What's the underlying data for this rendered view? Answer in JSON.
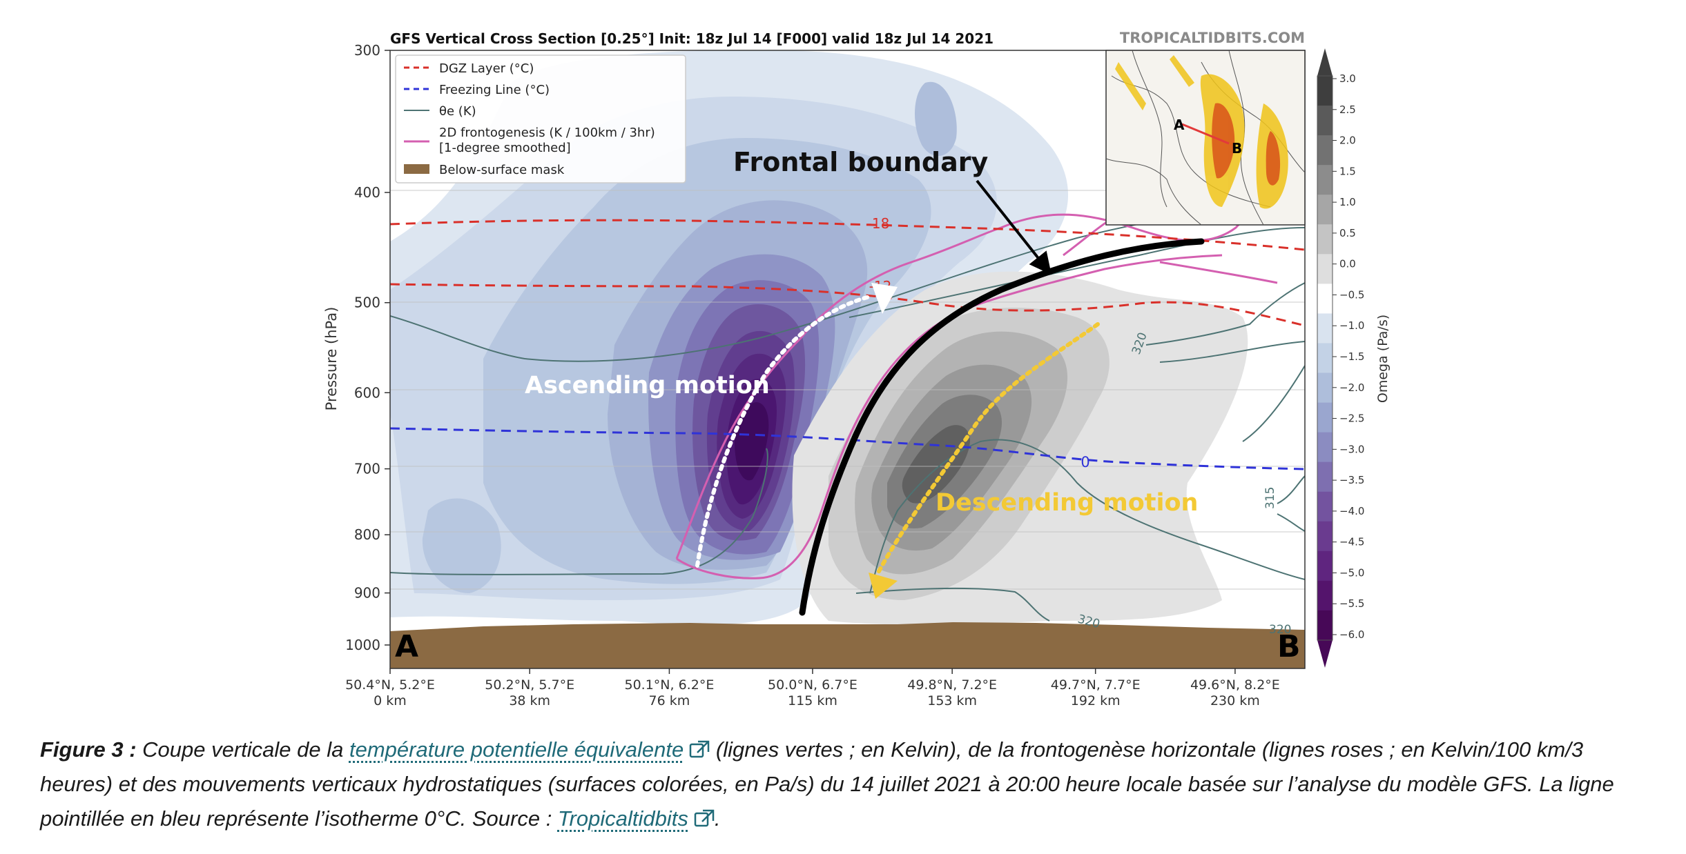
{
  "chart_data": {
    "type": "heatmap",
    "title": "GFS Vertical Cross Section [0.25°] Init: 18z Jul 14 [F000] valid 18z Jul 14 2021",
    "watermark": "TROPICALTIDBITS.COM",
    "y_axis": {
      "label": "Pressure (hPa)",
      "scale": "log",
      "range": [
        1000,
        300
      ],
      "ticks": [
        300,
        400,
        500,
        600,
        700,
        800,
        900,
        1000
      ]
    },
    "x_axis": {
      "range_km": [
        0,
        249
      ],
      "ticks": [
        {
          "km": 0,
          "label1": "50.4°N, 5.2°E",
          "label2": "0 km"
        },
        {
          "km": 38,
          "label1": "50.2°N, 5.7°E",
          "label2": "38 km"
        },
        {
          "km": 76,
          "label1": "50.1°N, 6.2°E",
          "label2": "76 km"
        },
        {
          "km": 115,
          "label1": "50.0°N, 6.7°E",
          "label2": "115 km"
        },
        {
          "km": 153,
          "label1": "49.8°N, 7.2°E",
          "label2": "153 km"
        },
        {
          "km": 192,
          "label1": "49.7°N, 7.7°E",
          "label2": "192 km"
        },
        {
          "km": 230,
          "label1": "49.6°N, 8.2°E",
          "label2": "230 km"
        }
      ]
    },
    "colorbar": {
      "label": "Omega (Pa/s)",
      "ticks": [
        "3.0",
        "2.5",
        "2.0",
        "1.5",
        "1.0",
        "0.5",
        "0.0",
        "−0.5",
        "−1.0",
        "−1.5",
        "−2.0",
        "−2.5",
        "−3.0",
        "−3.5",
        "−4.0",
        "−4.5",
        "−5.0",
        "−5.5",
        "−6.0"
      ],
      "colors": [
        "#3e3e3e",
        "#5a5a5a",
        "#727272",
        "#8c8c8c",
        "#a6a6a6",
        "#c4c4c4",
        "#dedede",
        "#ffffff",
        "#d9e3ef",
        "#c3d2e6",
        "#aebedb",
        "#9aa6cf",
        "#8b8cc1",
        "#7e6fb0",
        "#73539f",
        "#6a3b8f",
        "#5f257f",
        "#54146c",
        "#470857"
      ]
    },
    "legend": {
      "placement": "top-left",
      "entries": [
        {
          "label": "DGZ Layer (°C)",
          "color": "#d9302a",
          "style": "dashed"
        },
        {
          "label": "Freezing Line (°C)",
          "color": "#2f33d8",
          "style": "dashed"
        },
        {
          "label": "θe (K)",
          "color": "#4d7373",
          "style": "solid"
        },
        {
          "label": "2D frontogenesis (K / 100km / 3hr)",
          "label_line2": "[1-degree smoothed]",
          "color": "#d45fb0",
          "style": "solid"
        },
        {
          "label": "Below-surface mask",
          "color": "#8b6a43",
          "style": "patch"
        }
      ]
    },
    "series": [
      {
        "name": "DGZ Layer (°C)",
        "contour_label": "-18",
        "pressure_hPa": [
          428,
          425,
          426,
          428,
          432,
          440,
          452
        ]
      },
      {
        "name": "DGZ Layer (°C)",
        "contour_label": "-12",
        "pressure_hPa": [
          488,
          488,
          488,
          490,
          504,
          508,
          528
        ]
      },
      {
        "name": "Freezing Line (°C)",
        "contour_label": "0",
        "pressure_hPa": [
          652,
          654,
          656,
          662,
          675,
          700,
          708
        ]
      }
    ],
    "contour_labels": [
      "320",
      "320",
      "315",
      "320"
    ],
    "annotations": {
      "frontal": "Frontal boundary",
      "ascending": "Ascending motion",
      "descending": "Descending motion",
      "point_a": "A",
      "point_b": "B"
    }
  },
  "caption": {
    "label": "Figure 3 :",
    "text1": " Coupe verticale de la ",
    "link1": "température potentielle équivalente",
    "text2": " (lignes vertes ; en Kelvin), de la frontogenèse horizontale (lignes roses ; en Kelvin/100 km/3 heures) et des mouvements verticaux hydrostatiques (surfaces colorées, en Pa/s) du 14 juillet 2021 à 20:00 heure locale basée sur l’analyse du modèle GFS. La ligne pointillée en bleu représente l’isotherme 0°C. Source : ",
    "link2": "Tropicaltidbits",
    "text3": "."
  }
}
